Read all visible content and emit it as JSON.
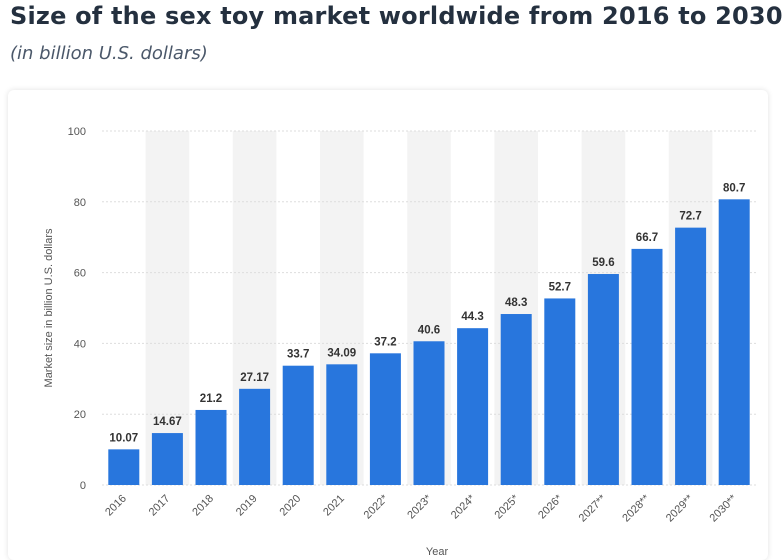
{
  "header": {
    "title": "Size of the sex toy market worldwide from 2016 to 2030",
    "subtitle": "(in billion U.S. dollars)"
  },
  "colors": {
    "bar": "#2876dd",
    "band": "#f3f3f3",
    "grid": "#dddddd",
    "text": "#24303f"
  },
  "chart_data": {
    "type": "bar",
    "categories": [
      "2016",
      "2017",
      "2018",
      "2019",
      "2020",
      "2021",
      "2022*",
      "2023*",
      "2024*",
      "2025*",
      "2026*",
      "2027**",
      "2028**",
      "2029**",
      "2030**"
    ],
    "values": [
      10.07,
      14.67,
      21.2,
      27.17,
      33.7,
      34.09,
      37.2,
      40.6,
      44.3,
      48.3,
      52.7,
      59.6,
      66.7,
      72.7,
      80.7
    ],
    "data_labels": [
      "10.07",
      "14.67",
      "21.2",
      "27.17",
      "33.7",
      "34.09",
      "37.2",
      "40.6",
      "44.3",
      "48.3",
      "52.7",
      "59.6",
      "66.7",
      "72.7",
      "80.7"
    ],
    "title": "Size of the sex toy market worldwide from 2016 to 2030",
    "subtitle": "(in billion U.S. dollars)",
    "xlabel": "Year",
    "ylabel": "Market size in billion U.S. dollars",
    "ylim": [
      0,
      100
    ],
    "yticks": [
      0,
      20,
      40,
      60,
      80,
      100
    ],
    "grid": true,
    "legend": "none"
  }
}
